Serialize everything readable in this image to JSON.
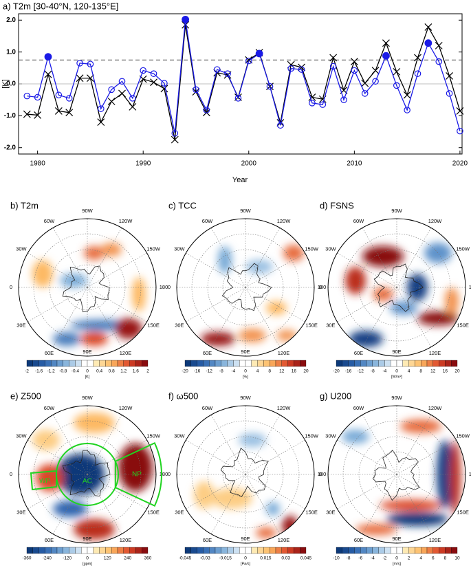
{
  "chart_data": {
    "type": "line",
    "title": "a) T2m [30-40°N, 120-135°E]",
    "x_label": "Year",
    "y_label": "[K]",
    "x": [
      1979,
      1980,
      1981,
      1982,
      1983,
      1984,
      1985,
      1986,
      1987,
      1988,
      1989,
      1990,
      1991,
      1992,
      1993,
      1994,
      1995,
      1996,
      1997,
      1998,
      1999,
      2000,
      2001,
      2002,
      2003,
      2004,
      2005,
      2006,
      2007,
      2008,
      2009,
      2010,
      2011,
      2012,
      2013,
      2014,
      2015,
      2016,
      2017,
      2018,
      2019,
      2020
    ],
    "series": [
      {
        "color": "#000000",
        "marker": "x",
        "values": [
          -0.95,
          -0.98,
          0.3,
          -0.85,
          -0.9,
          0.18,
          0.18,
          -1.2,
          -0.55,
          -0.3,
          -0.72,
          0.15,
          0.05,
          -0.15,
          -1.75,
          1.85,
          -0.25,
          -0.9,
          0.35,
          0.28,
          -0.42,
          0.75,
          0.98,
          -0.08,
          -1.22,
          0.6,
          0.52,
          -0.42,
          -0.48,
          0.82,
          -0.2,
          0.7,
          0.02,
          0.42,
          1.28,
          0.38,
          -0.35,
          0.82,
          1.78,
          1.2,
          0.25,
          -0.85
        ]
      },
      {
        "color": "#1a1ae6",
        "marker": "circle",
        "filled_above_reference": true,
        "values": [
          -0.38,
          -0.42,
          0.85,
          -0.35,
          -0.45,
          0.65,
          0.62,
          -0.78,
          -0.18,
          0.08,
          -0.45,
          0.42,
          0.32,
          0.02,
          -1.55,
          2.02,
          -0.18,
          -0.82,
          0.45,
          0.32,
          -0.45,
          0.72,
          0.95,
          -0.08,
          -1.3,
          0.48,
          0.45,
          -0.6,
          -0.65,
          0.55,
          -0.5,
          0.42,
          -0.3,
          0.08,
          0.88,
          -0.05,
          -0.82,
          0.32,
          1.28,
          0.7,
          -0.3,
          -1.48
        ]
      }
    ],
    "reference_line": 0.75,
    "zero_line": true,
    "xlim": [
      1978.2,
      2020.2
    ],
    "xticks": [
      1980,
      1990,
      2000,
      2010,
      2020
    ],
    "ylim": [
      -2.2,
      2.2
    ],
    "yticks": [
      {
        "value": 2,
        "label": "2.0"
      },
      {
        "value": 1,
        "label": "1.0"
      },
      {
        "value": 0,
        "label": "0.0"
      },
      {
        "value": -1,
        "label": "-1.0"
      },
      {
        "value": -2,
        "label": "-2.0"
      }
    ]
  },
  "lon_labels": [
    "90W",
    "120W",
    "150W",
    "180",
    "150E",
    "120E",
    "90E",
    "60E",
    "30E",
    "0",
    "30W",
    "60W"
  ],
  "map_panels": [
    {
      "title": "b) T2m",
      "colorbar_ticks": [
        -2,
        -1.6,
        -1.2,
        -0.8,
        -0.4,
        0,
        0.4,
        0.8,
        1.2,
        1.6,
        2
      ],
      "colorbar_unit": "[K]"
    },
    {
      "title": "c) TCC",
      "colorbar_ticks": [
        -20,
        -16,
        -12,
        -8,
        -4,
        0,
        4,
        8,
        12,
        16,
        20
      ],
      "colorbar_unit": "[%]"
    },
    {
      "title": "d) FSNS",
      "colorbar_ticks": [
        -20,
        -16,
        -12,
        -8,
        -4,
        0,
        4,
        8,
        12,
        16,
        20
      ],
      "colorbar_unit": "[W/m²]"
    },
    {
      "title": "e) Z500",
      "colorbar_ticks": [
        -360,
        -240,
        -120,
        0,
        120,
        240,
        360
      ],
      "colorbar_unit": "[gpm]",
      "annotations": [
        "AC",
        "NP",
        "WP"
      ]
    },
    {
      "title": "f) ω500",
      "colorbar_ticks": [
        -0.045,
        -0.03,
        -0.015,
        0,
        0.015,
        0.03,
        0.045
      ],
      "colorbar_unit": "[Pa/s]"
    },
    {
      "title": "g) U200",
      "colorbar_ticks": [
        -10,
        -8,
        -6,
        -4,
        -2,
        0,
        2,
        4,
        6,
        8,
        10
      ],
      "colorbar_unit": "[m/s]"
    }
  ]
}
